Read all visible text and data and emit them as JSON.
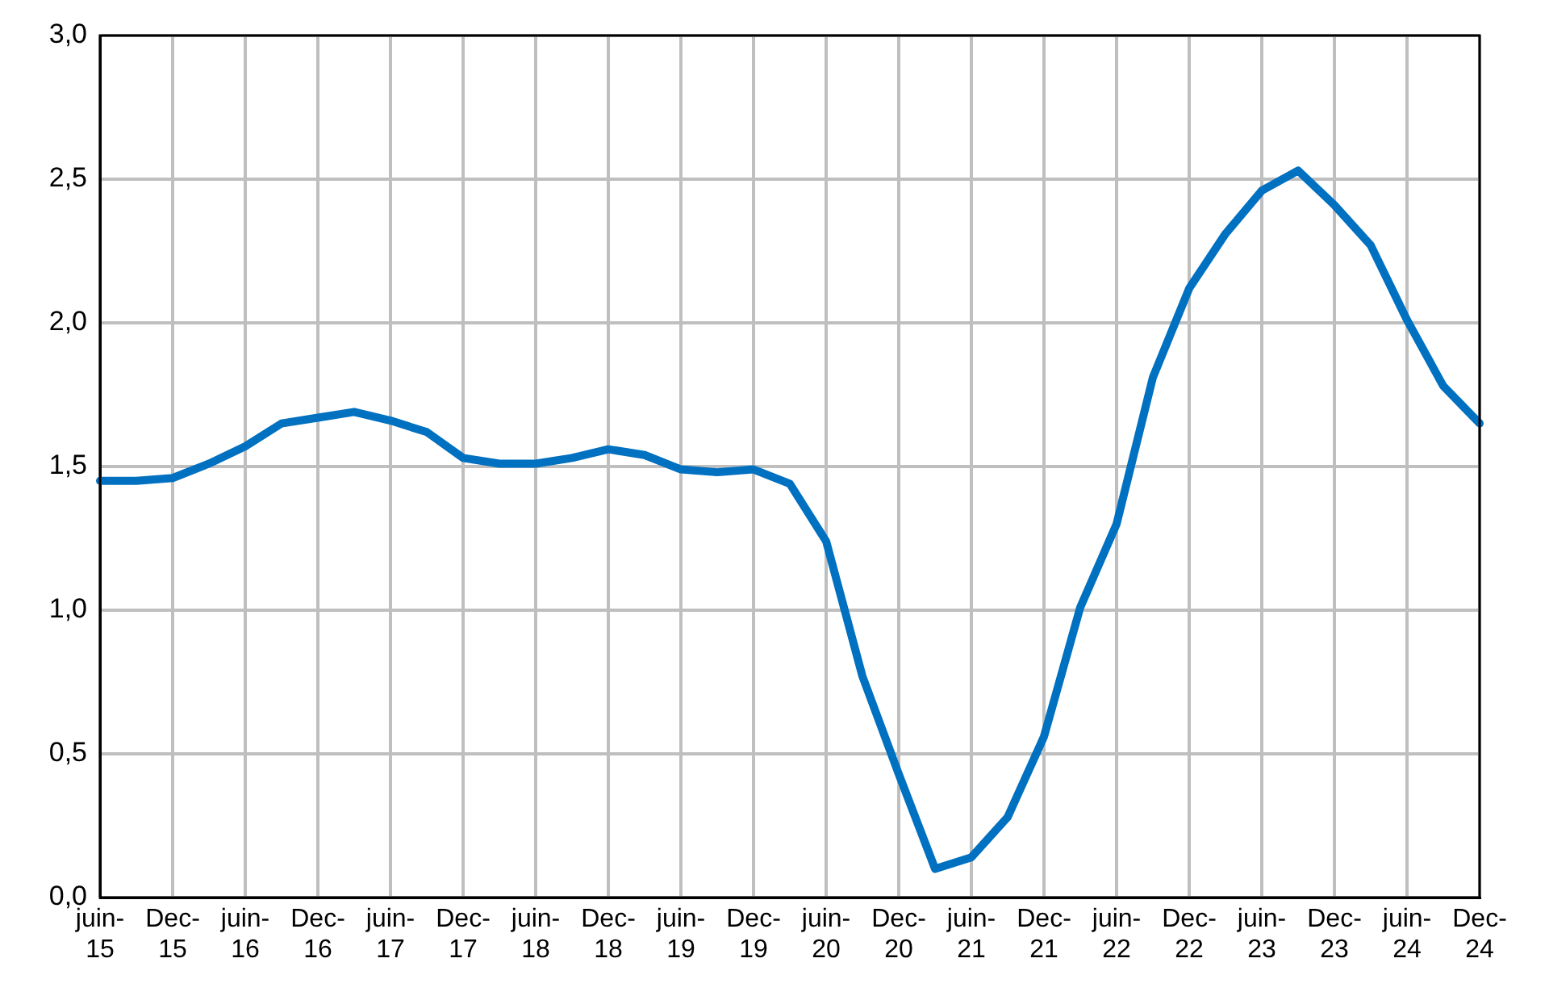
{
  "chart_data": {
    "type": "line",
    "categories": [
      "juin-15",
      null,
      "Dec-15",
      null,
      "juin-16",
      null,
      "Dec-16",
      null,
      "juin-17",
      null,
      "Dec-17",
      null,
      "juin-18",
      null,
      "Dec-18",
      null,
      "juin-19",
      null,
      "Dec-19",
      null,
      "juin-20",
      null,
      "Dec-20",
      null,
      "juin-21",
      null,
      "Dec-21",
      null,
      "juin-22",
      null,
      "Dec-22",
      null,
      "juin-23",
      null,
      "Dec-23",
      null,
      "juin-24",
      null,
      "Dec-24"
    ],
    "series": [
      {
        "color": "#0070c0",
        "values": [
          1.45,
          1.45,
          1.46,
          1.51,
          1.57,
          1.65,
          1.67,
          1.69,
          1.66,
          1.62,
          1.53,
          1.51,
          1.51,
          1.53,
          1.56,
          1.54,
          1.49,
          1.48,
          1.49,
          1.44,
          1.24,
          0.77,
          0.43,
          0.1,
          0.14,
          0.28,
          0.56,
          1.01,
          1.3,
          1.81,
          2.12,
          2.31,
          2.46,
          2.53,
          2.41,
          2.27,
          2.01,
          1.78,
          1.65
        ]
      }
    ],
    "ylim": [
      0,
      3
    ],
    "yticks": [
      {
        "value": 0,
        "label": "0,0"
      },
      {
        "value": 0.5,
        "label": "0,5"
      },
      {
        "value": 1,
        "label": "1,0"
      },
      {
        "value": 1.5,
        "label": "1,5"
      },
      {
        "value": 2,
        "label": "2,0"
      },
      {
        "value": 2.5,
        "label": "2,5"
      },
      {
        "value": 3,
        "label": "3,0"
      }
    ],
    "grid": true,
    "legend": false,
    "marker": "none",
    "line_style": "solid"
  }
}
